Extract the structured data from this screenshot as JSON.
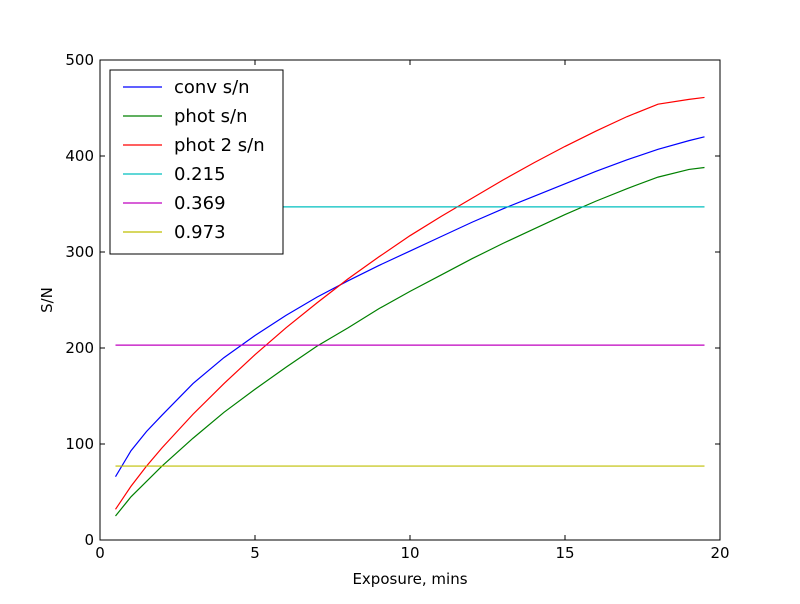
{
  "chart_data": {
    "type": "line",
    "title": "",
    "xlabel": "Exposure, mins",
    "ylabel": "S/N",
    "xlim": [
      0,
      20
    ],
    "ylim": [
      0,
      500
    ],
    "xticks": [
      0,
      5,
      10,
      15,
      20
    ],
    "yticks": [
      0,
      100,
      200,
      300,
      400,
      500
    ],
    "xtick_labels": [
      "0",
      "5",
      "10",
      "15",
      "20"
    ],
    "ytick_labels": [
      "0",
      "100",
      "200",
      "300",
      "400",
      "500"
    ],
    "grid": false,
    "legend_position": "upper-left",
    "x": [
      0.5,
      1,
      1.5,
      2,
      3,
      4,
      5,
      6,
      7,
      8,
      9,
      10,
      11,
      12,
      13,
      14,
      15,
      16,
      17,
      18,
      19,
      19.5
    ],
    "series": [
      {
        "name": "conv s/n",
        "color": "#0000ff",
        "values": [
          66,
          93,
          113,
          130,
          163,
          190,
          213,
          234,
          253,
          270,
          286,
          301,
          316,
          331,
          345,
          358,
          371,
          384,
          396,
          407,
          416,
          420
        ]
      },
      {
        "name": "phot s/n",
        "color": "#008000",
        "values": [
          25,
          45,
          61,
          77,
          106,
          133,
          157,
          180,
          202,
          221,
          241,
          259,
          276,
          293,
          309,
          324,
          339,
          353,
          366,
          378,
          386,
          388
        ]
      },
      {
        "name": "phot 2 s/n",
        "color": "#ff0000",
        "values": [
          32,
          56,
          77,
          96,
          131,
          163,
          193,
          221,
          247,
          272,
          295,
          317,
          337,
          356,
          375,
          393,
          410,
          426,
          441,
          454,
          459,
          461
        ]
      },
      {
        "name": "0.215",
        "color": "#00bfbf",
        "values": [
          347,
          347,
          347,
          347,
          347,
          347,
          347,
          347,
          347,
          347,
          347,
          347,
          347,
          347,
          347,
          347,
          347,
          347,
          347,
          347,
          347,
          347
        ]
      },
      {
        "name": "0.369",
        "color": "#bf00bf",
        "values": [
          203,
          203,
          203,
          203,
          203,
          203,
          203,
          203,
          203,
          203,
          203,
          203,
          203,
          203,
          203,
          203,
          203,
          203,
          203,
          203,
          203,
          203
        ]
      },
      {
        "name": "0.973",
        "color": "#bfbf00",
        "values": [
          77,
          77,
          77,
          77,
          77,
          77,
          77,
          77,
          77,
          77,
          77,
          77,
          77,
          77,
          77,
          77,
          77,
          77,
          77,
          77,
          77,
          77
        ]
      }
    ]
  }
}
